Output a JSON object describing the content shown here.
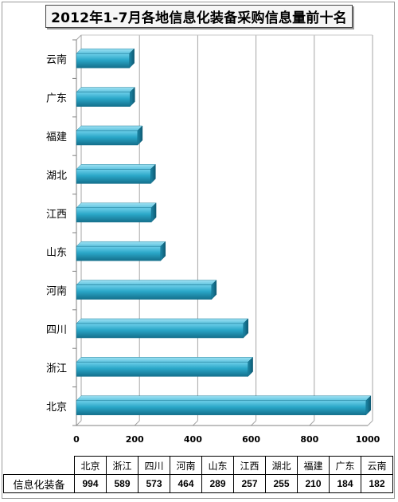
{
  "title": "2012年1-7月各地信息化装备采购信息量前十名",
  "chart_data": {
    "type": "bar",
    "orientation": "horizontal",
    "title": "2012年1-7月各地信息化装备采购信息量前十名",
    "categories": [
      "北京",
      "浙江",
      "四川",
      "河南",
      "山东",
      "江西",
      "湖北",
      "福建",
      "广东",
      "云南"
    ],
    "series": [
      {
        "name": "信息化装备",
        "values": [
          994,
          589,
          573,
          464,
          289,
          257,
          255,
          210,
          184,
          182
        ]
      }
    ],
    "xlim": [
      0,
      1000
    ],
    "x_ticks": [
      0,
      200,
      400,
      600,
      800,
      1000
    ],
    "grid": true,
    "bar_color": "#2aa7c8"
  },
  "table": {
    "row_label": "信息化装备"
  }
}
